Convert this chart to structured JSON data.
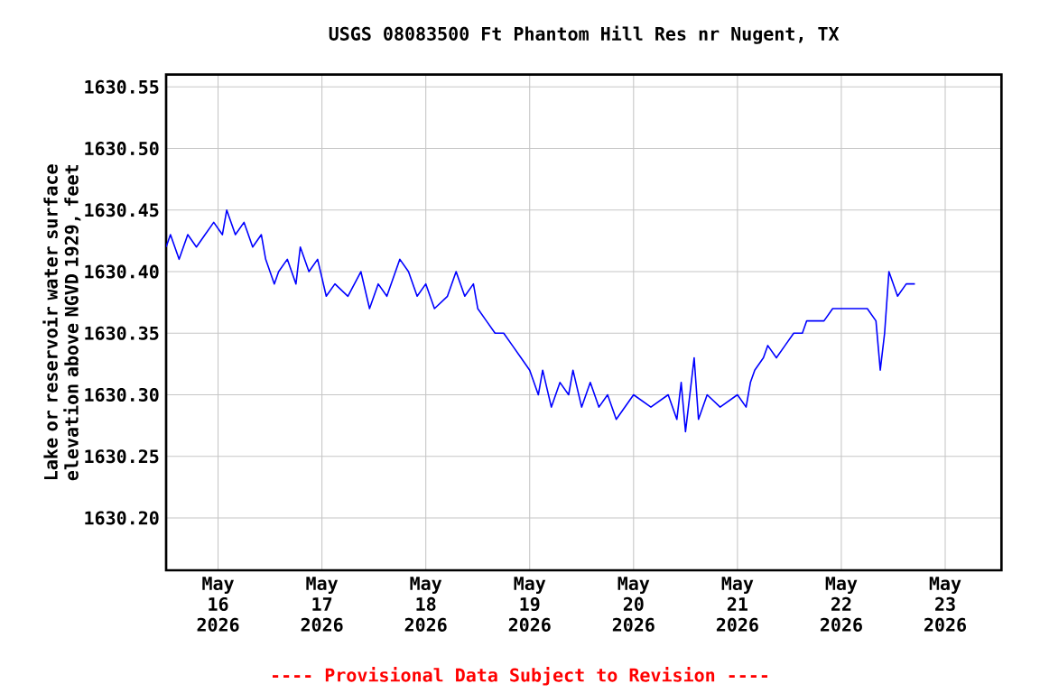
{
  "chart_data": {
    "type": "line",
    "title": "USGS 08083500 Ft Phantom Hill Res nr Nugent, TX",
    "ylabel": "Lake or reservoir water surface elevation above NGVD 1929, feet",
    "annotations": [
      "---- Provisional Data Subject to Revision ----"
    ],
    "x": [
      "2026-05-15T12:00",
      "2026-05-15T13:00",
      "2026-05-15T15:00",
      "2026-05-15T17:00",
      "2026-05-15T19:00",
      "2026-05-15T21:00",
      "2026-05-15T23:00",
      "2026-05-16T01:00",
      "2026-05-16T02:00",
      "2026-05-16T04:00",
      "2026-05-16T06:00",
      "2026-05-16T08:00",
      "2026-05-16T10:00",
      "2026-05-16T11:00",
      "2026-05-16T13:00",
      "2026-05-16T14:00",
      "2026-05-16T16:00",
      "2026-05-16T18:00",
      "2026-05-16T19:00",
      "2026-05-16T21:00",
      "2026-05-16T23:00",
      "2026-05-17T01:00",
      "2026-05-17T03:00",
      "2026-05-17T06:00",
      "2026-05-17T09:00",
      "2026-05-17T11:00",
      "2026-05-17T13:00",
      "2026-05-17T15:00",
      "2026-05-17T18:00",
      "2026-05-17T20:00",
      "2026-05-17T22:00",
      "2026-05-18T00:00",
      "2026-05-18T02:00",
      "2026-05-18T05:00",
      "2026-05-18T07:00",
      "2026-05-18T09:00",
      "2026-05-18T11:00",
      "2026-05-18T12:00",
      "2026-05-18T14:00",
      "2026-05-18T16:00",
      "2026-05-18T18:00",
      "2026-05-18T20:00",
      "2026-05-18T22:00",
      "2026-05-19T00:00",
      "2026-05-19T02:00",
      "2026-05-19T03:00",
      "2026-05-19T05:00",
      "2026-05-19T07:00",
      "2026-05-19T09:00",
      "2026-05-19T10:00",
      "2026-05-19T12:00",
      "2026-05-19T14:00",
      "2026-05-19T16:00",
      "2026-05-19T18:00",
      "2026-05-19T20:00",
      "2026-05-20T00:00",
      "2026-05-20T04:00",
      "2026-05-20T08:00",
      "2026-05-20T10:00",
      "2026-05-20T11:00",
      "2026-05-20T12:00",
      "2026-05-20T14:00",
      "2026-05-20T15:00",
      "2026-05-20T17:00",
      "2026-05-20T20:00",
      "2026-05-21T00:00",
      "2026-05-21T02:00",
      "2026-05-21T03:00",
      "2026-05-21T04:00",
      "2026-05-21T06:00",
      "2026-05-21T07:00",
      "2026-05-21T09:00",
      "2026-05-21T11:00",
      "2026-05-21T13:00",
      "2026-05-21T15:00",
      "2026-05-21T16:00",
      "2026-05-21T20:00",
      "2026-05-21T22:00",
      "2026-05-22T02:00",
      "2026-05-22T06:00",
      "2026-05-22T08:00",
      "2026-05-22T09:00",
      "2026-05-22T10:00",
      "2026-05-22T11:00",
      "2026-05-22T13:00",
      "2026-05-22T15:00",
      "2026-05-22T17:00"
    ],
    "series": [
      {
        "color": "#0000ff",
        "values": [
          1630.42,
          1630.43,
          1630.41,
          1630.43,
          1630.42,
          1630.43,
          1630.44,
          1630.43,
          1630.45,
          1630.43,
          1630.44,
          1630.42,
          1630.43,
          1630.41,
          1630.39,
          1630.4,
          1630.41,
          1630.39,
          1630.42,
          1630.4,
          1630.41,
          1630.38,
          1630.39,
          1630.38,
          1630.4,
          1630.37,
          1630.39,
          1630.38,
          1630.41,
          1630.4,
          1630.38,
          1630.39,
          1630.37,
          1630.38,
          1630.4,
          1630.38,
          1630.39,
          1630.37,
          1630.36,
          1630.35,
          1630.35,
          1630.34,
          1630.33,
          1630.32,
          1630.3,
          1630.32,
          1630.29,
          1630.31,
          1630.3,
          1630.32,
          1630.29,
          1630.31,
          1630.29,
          1630.3,
          1630.28,
          1630.3,
          1630.29,
          1630.3,
          1630.28,
          1630.31,
          1630.27,
          1630.33,
          1630.28,
          1630.3,
          1630.29,
          1630.3,
          1630.29,
          1630.31,
          1630.32,
          1630.33,
          1630.34,
          1630.33,
          1630.34,
          1630.35,
          1630.35,
          1630.36,
          1630.36,
          1630.37,
          1630.37,
          1630.37,
          1630.36,
          1630.32,
          1630.35,
          1630.4,
          1630.38,
          1630.39,
          1630.39
        ]
      }
    ],
    "xlim": [
      "2026-05-15T12:00",
      "2026-05-23T13:00"
    ],
    "xticks": [
      {
        "value": "2026-05-16",
        "label": "May 16 2026"
      },
      {
        "value": "2026-05-17",
        "label": "May 17 2026"
      },
      {
        "value": "2026-05-18",
        "label": "May 18 2026"
      },
      {
        "value": "2026-05-19",
        "label": "May 19 2026"
      },
      {
        "value": "2026-05-20",
        "label": "May 20 2026"
      },
      {
        "value": "2026-05-21",
        "label": "May 21 2026"
      },
      {
        "value": "2026-05-22",
        "label": "May 22 2026"
      },
      {
        "value": "2026-05-23",
        "label": "May 23 2026"
      }
    ],
    "ylim": [
      1630.1575,
      1630.56
    ],
    "yticks": [
      {
        "value": 1630.2,
        "label": "1630.20"
      },
      {
        "value": 1630.25,
        "label": "1630.25"
      },
      {
        "value": 1630.3,
        "label": "1630.30"
      },
      {
        "value": 1630.35,
        "label": "1630.35"
      },
      {
        "value": 1630.4,
        "label": "1630.40"
      },
      {
        "value": 1630.45,
        "label": "1630.45"
      },
      {
        "value": 1630.5,
        "label": "1630.50"
      },
      {
        "value": 1630.55,
        "label": "1630.55"
      }
    ],
    "grid": true,
    "marker": "none",
    "line_style": "solid"
  }
}
